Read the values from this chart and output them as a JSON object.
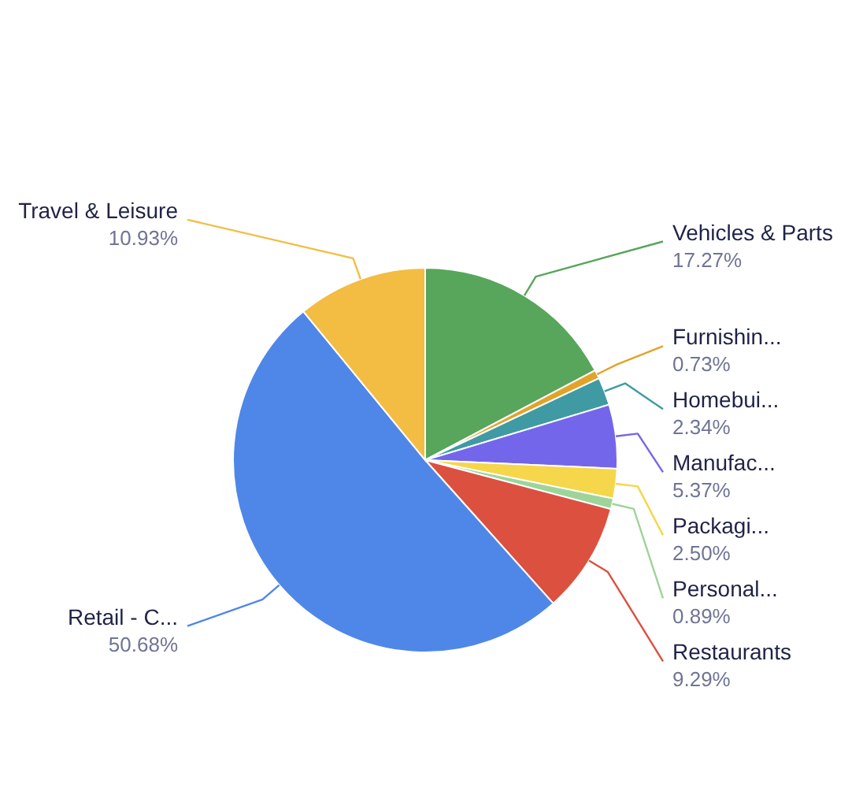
{
  "chart_data": {
    "type": "pie",
    "categories": [
      "Vehicles & Parts",
      "Furnishin...",
      "Homebui...",
      "Manufac...",
      "Packagi...",
      "Personal...",
      "Restaurants",
      "Retail - C...",
      "Travel & Leisure"
    ],
    "values": [
      17.27,
      0.73,
      2.34,
      5.37,
      2.5,
      0.89,
      9.29,
      50.68,
      10.93
    ],
    "value_labels": [
      "17.27%",
      "0.73%",
      "2.34%",
      "5.37%",
      "2.50%",
      "0.89%",
      "9.29%",
      "50.68%",
      "10.93%"
    ],
    "colors": [
      "#57a65b",
      "#e2a329",
      "#3f9aa3",
      "#7466ea",
      "#f6d64a",
      "#9dd49a",
      "#dc5040",
      "#4f87e8",
      "#f3bd43"
    ]
  }
}
